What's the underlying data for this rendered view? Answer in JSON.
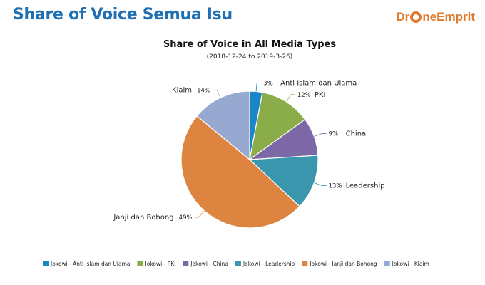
{
  "header": {
    "page_title": "Share of Voice Semua Isu",
    "logo_text": "DroneEmprit"
  },
  "colors": {
    "Anti Islam dan Ulama": "#1a86c8",
    "PKI": "#8aad4a",
    "China": "#7c68a6",
    "Leadership": "#3b97ad",
    "Janji dan Bohong": "#dd8440",
    "Klaim": "#97a9d0"
  },
  "chart_data": {
    "type": "pie",
    "title": "Share of Voice in All Media Types",
    "subtitle": "(2018-12-24 to 2019-3-26)",
    "slices": [
      {
        "label": "Anti Islam dan Ulama",
        "percent_label": "3%",
        "value": 3,
        "legend": "Jokowi - Anti Islam dan Ulama"
      },
      {
        "label": "PKI",
        "percent_label": "12%",
        "value": 12,
        "legend": "Jokowi - PKI"
      },
      {
        "label": "China",
        "percent_label": "9%",
        "value": 9,
        "legend": "Jokowi - China"
      },
      {
        "label": "Leadership",
        "percent_label": "13%",
        "value": 13,
        "legend": "Jokowi - Leadership"
      },
      {
        "label": "Janji dan Bohong",
        "percent_label": "49%",
        "value": 49,
        "legend": "Jokowi - Janji dan Bohong"
      },
      {
        "label": "Klaim",
        "percent_label": "14%",
        "value": 14,
        "legend": "Jokowi - Klaim"
      }
    ],
    "legend_position": "bottom"
  }
}
